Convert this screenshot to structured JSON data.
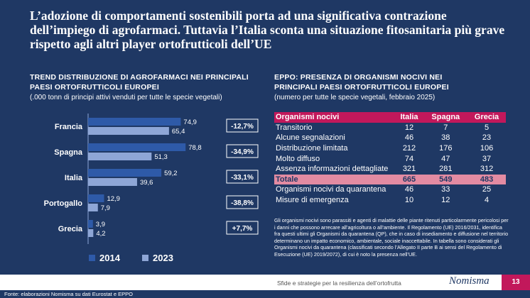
{
  "title": "L’adozione di comportamenti sostenibili porta ad una significativa contrazione dell’impiego di agrofarmaci. Tuttavia l’Italia sconta una situazione fitosanitaria più grave rispetto agli altri player ortofrutticoli dell’UE",
  "left_panel": {
    "title_line1": "TREND DISTRIBUZIONE DI AGROFARMACI NEI PRINCIPALI",
    "title_line2": "PAESI ORTOFRUTTICOLI EUROPEI",
    "subtitle": "(.000 tonn di principi attivi venduti per tutte le specie vegetali)"
  },
  "right_panel": {
    "title_line1": "EPPO: PRESENZA DI ORGANISMI NOCIVI NEI",
    "title_line2": "PRINCIPALI PAESI ORTOFRUTTICOLI EUROPEI",
    "subtitle": "(numero per tutte le specie vegetali, febbraio 2025)"
  },
  "chart_data": [
    {
      "type": "bar",
      "orientation": "horizontal",
      "categories": [
        "Francia",
        "Spagna",
        "Italia",
        "Portogallo",
        "Grecia"
      ],
      "series": [
        {
          "name": "2014",
          "values": [
            74.9,
            78.8,
            59.2,
            12.9,
            3.9
          ],
          "labels": [
            "74,9",
            "78,8",
            "59,2",
            "12,9",
            "3,9"
          ],
          "color": "#2e5aa8"
        },
        {
          "name": "2023",
          "values": [
            65.4,
            51.3,
            39.6,
            7.9,
            4.2
          ],
          "labels": [
            "65,4",
            "51,3",
            "39,6",
            "7,9",
            "4,2"
          ],
          "color": "#8ea6d6"
        }
      ],
      "annotations": [
        "-12,7%",
        "-34,9%",
        "-33,1%",
        "-38,8%",
        "+7,7%"
      ],
      "xlim": [
        0,
        85
      ],
      "grid": false,
      "legend": "bottom"
    },
    {
      "type": "table",
      "columns": [
        "Organismi nocivi",
        "Italia",
        "Spagna",
        "Grecia"
      ],
      "rows": [
        [
          "Transitorio",
          "12",
          "7",
          "5"
        ],
        [
          "Alcune segnalazioni",
          "46",
          "38",
          "23"
        ],
        [
          "Distribuzione limitata",
          "212",
          "176",
          "106"
        ],
        [
          "Molto diffuso",
          "74",
          "47",
          "37"
        ],
        [
          "Assenza informazioni dettagliate",
          "321",
          "281",
          "312"
        ],
        [
          "Totale",
          "665",
          "549",
          "483"
        ],
        [
          "Organismi nocivi da quarantena",
          "46",
          "33",
          "25"
        ],
        [
          "Misure di emergenza",
          "10",
          "12",
          "4"
        ]
      ]
    }
  ],
  "note": "Gli organismi nocivi sono parassiti e agenti di malattie delle piante ritenuti particolarmente pericolosi per i danni che possono arrecare all’agricoltura o all’ambiente. Il Regolamento (UE) 2016/2031, identifica fra questi ultimi gli Organismi da quarantena (QP), che in caso di insediamento e diffusione nel territorio determinano un impatto economico, ambientale, sociale inaccettabile. In tabella sono considerati gli Organismi nocivi da quarantena (classificati secondo l’Allegato II parte B ai sensi del Regolamento di Esecuzione (UE) 2019/2072), di cui è noto la presenza nell’UE.",
  "footer": {
    "text": "Sfide e strategie per la resilienza dell’ortofrutta",
    "brand": "Nomisma",
    "page": "13",
    "source": "Fonte: elaborazioni Nomisma su dati  Eurostat e EPPO"
  },
  "colors": {
    "background": "#1f3864",
    "accent": "#c2185b",
    "total_row": "#e38ba2"
  }
}
